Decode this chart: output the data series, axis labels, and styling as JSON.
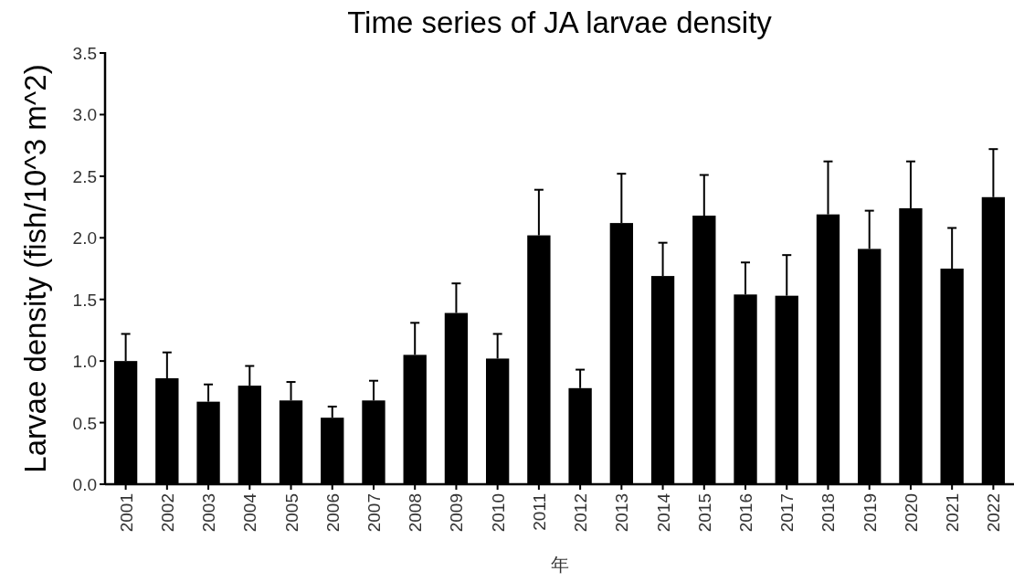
{
  "chart_data": {
    "type": "bar",
    "title": "Time series of JA larvae density",
    "xlabel": "年",
    "ylabel": "Larvae density (fish/10^3 m^2)",
    "categories": [
      "2001",
      "2002",
      "2003",
      "2004",
      "2005",
      "2006",
      "2007",
      "2008",
      "2009",
      "2010",
      "2011",
      "2012",
      "2013",
      "2014",
      "2015",
      "2016",
      "2017",
      "2018",
      "2019",
      "2020",
      "2021",
      "2022"
    ],
    "values": [
      1.0,
      0.86,
      0.67,
      0.8,
      0.68,
      0.54,
      0.68,
      1.05,
      1.39,
      1.02,
      2.02,
      0.78,
      2.12,
      1.69,
      2.18,
      1.54,
      1.53,
      2.19,
      1.91,
      2.24,
      1.75,
      2.33
    ],
    "errors": [
      [
        1.0,
        1.22
      ],
      [
        0.86,
        1.07
      ],
      [
        0.67,
        0.81
      ],
      [
        0.8,
        0.96
      ],
      [
        0.68,
        0.83
      ],
      [
        0.54,
        0.63
      ],
      [
        0.68,
        0.84
      ],
      [
        1.05,
        1.31
      ],
      [
        1.39,
        1.63
      ],
      [
        1.02,
        1.22
      ],
      [
        2.02,
        2.39
      ],
      [
        0.78,
        0.93
      ],
      [
        2.12,
        2.52
      ],
      [
        1.69,
        1.96
      ],
      [
        2.18,
        2.51
      ],
      [
        1.54,
        1.8
      ],
      [
        1.53,
        1.86
      ],
      [
        2.19,
        2.62
      ],
      [
        1.91,
        2.22
      ],
      [
        2.24,
        2.62
      ],
      [
        1.75,
        2.08
      ],
      [
        2.33,
        2.72
      ]
    ],
    "color": "#000000",
    "ylim": [
      0,
      3.5
    ],
    "yticks": [
      {
        "value": 0,
        "label": "0.0"
      },
      {
        "value": 0.5,
        "label": "0.5"
      },
      {
        "value": 1,
        "label": "1.0"
      },
      {
        "value": 1.5,
        "label": "1.5"
      },
      {
        "value": 2,
        "label": "2.0"
      },
      {
        "value": 2.5,
        "label": "2.5"
      },
      {
        "value": 3,
        "label": "3.0"
      },
      {
        "value": 3.5,
        "label": "3.5"
      }
    ],
    "grid": false
  }
}
